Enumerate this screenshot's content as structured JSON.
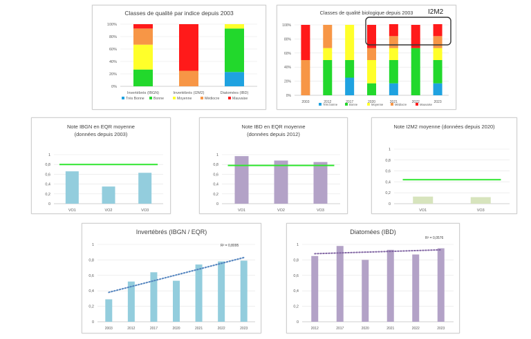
{
  "colors": {
    "tres_bonne": "#1fa2e0",
    "bonne": "#22d82c",
    "moyenne": "#ffff2a",
    "mediocre": "#f79646",
    "mauvaise": "#ff1a1a",
    "blue_bar": "#93cddd",
    "purple_bar": "#b3a2c7",
    "green_line": "#2ee62e",
    "olive_bar": "#d7e4bd",
    "trend_blue": "#4f81bd",
    "trend_purple": "#8064a2"
  },
  "chart_data": [
    {
      "id": "quality_by_index",
      "type": "bar",
      "stacked": true,
      "title": "Classes de qualité par indice depuis 2003",
      "categories": [
        "Invertébrés (IBGN)",
        "Invertébrés (I2M2)",
        "Diatomées (IBD)"
      ],
      "ylim": [
        0,
        100
      ],
      "yticks": [
        "0%",
        "20%",
        "40%",
        "60%",
        "80%",
        "100%"
      ],
      "series": [
        {
          "name": "Très Bonne",
          "values": [
            0,
            0,
            23
          ],
          "color_key": "tres_bonne"
        },
        {
          "name": "Bonne",
          "values": [
            27,
            0,
            70
          ],
          "color_key": "bonne"
        },
        {
          "name": "Moyenne",
          "values": [
            40,
            0,
            7
          ],
          "color_key": "moyenne"
        },
        {
          "name": "Médiocre",
          "values": [
            26,
            25,
            0
          ],
          "color_key": "mediocre"
        },
        {
          "name": "Mauvaise",
          "values": [
            7,
            75,
            0
          ],
          "color_key": "mauvaise"
        }
      ],
      "legend": [
        "Très Bonne",
        "Bonne",
        "Moyenne",
        "Médiocre",
        "Mauvaise"
      ]
    },
    {
      "id": "quality_bio_years",
      "type": "bar",
      "stacked": true,
      "title": "Classes de qualité biologique depuis 2003",
      "annotation": "I2M2",
      "categories": [
        "2003",
        "2012",
        "2017",
        "2020",
        "2021",
        "2022",
        "2023"
      ],
      "ylim": [
        0,
        100
      ],
      "yticks": [
        "0%",
        "20%",
        "40%",
        "60%",
        "80%",
        "100%"
      ],
      "series": [
        {
          "name": "Très bonne",
          "values": [
            0,
            0,
            25,
            0,
            17,
            0,
            17
          ],
          "color_key": "tres_bonne"
        },
        {
          "name": "Bonne",
          "values": [
            0,
            50,
            25,
            17,
            33,
            67,
            33
          ],
          "color_key": "bonne"
        },
        {
          "name": "Moyenne",
          "values": [
            0,
            17,
            50,
            33,
            17,
            0,
            17
          ],
          "color_key": "moyenne"
        },
        {
          "name": "Médiocre",
          "values": [
            50,
            33,
            0,
            17,
            17,
            0,
            17
          ],
          "color_key": "mediocre"
        },
        {
          "name": "Mauvaise",
          "values": [
            50,
            0,
            0,
            33,
            17,
            33,
            17
          ],
          "color_key": "mauvaise"
        }
      ],
      "legend": [
        "Très bonne",
        "Bonne",
        "Moyenne",
        "Médiocre",
        "Mauvaise"
      ]
    },
    {
      "id": "ibgn_eqr",
      "type": "bar",
      "title": "Note IBGN en EQR moyenne (données depuis 2003)",
      "categories": [
        "VO1",
        "VO2",
        "VO3"
      ],
      "values": [
        0.66,
        0.35,
        0.63
      ],
      "ylim": [
        0,
        1
      ],
      "yticks": [
        "0",
        "0,2",
        "0,4",
        "0,6",
        "0,8",
        "1"
      ],
      "threshold": 0.8,
      "color_key": "blue_bar"
    },
    {
      "id": "ibd_eqr",
      "type": "bar",
      "title": "Note IBD en EQR moyenne (données depuis 2012)",
      "categories": [
        "VO1",
        "VO2",
        "VO3"
      ],
      "values": [
        0.97,
        0.88,
        0.85
      ],
      "ylim": [
        0,
        1
      ],
      "yticks": [
        "0",
        "0,2",
        "0,4",
        "0,6",
        "0,8",
        "1"
      ],
      "threshold": 0.78,
      "color_key": "purple_bar"
    },
    {
      "id": "i2m2",
      "type": "bar",
      "title": "Note I2M2 moyenne (données depuis 2020)",
      "categories": [
        "VO1",
        "VO3"
      ],
      "values": [
        0.13,
        0.12
      ],
      "ylim": [
        0,
        1
      ],
      "yticks": [
        "0",
        "0,2",
        "0,4",
        "0,6",
        "0,8",
        "1"
      ],
      "threshold": 0.44,
      "color_key": "olive_bar"
    },
    {
      "id": "invertebres_trend",
      "type": "bar",
      "title": "Invertébrés (IBGN / EQR)",
      "categories": [
        "2003",
        "2012",
        "2017",
        "2020",
        "2021",
        "2022",
        "2023"
      ],
      "values": [
        0.29,
        0.52,
        0.64,
        0.53,
        0.74,
        0.78,
        0.79
      ],
      "ylim": [
        0,
        1
      ],
      "yticks": [
        "0",
        "0,2",
        "0,4",
        "0,6",
        "0,8",
        "1"
      ],
      "trend": {
        "start": 0.38,
        "end": 0.83,
        "r2": "R² = 0,8095"
      },
      "color_key": "blue_bar",
      "trend_color_key": "trend_blue"
    },
    {
      "id": "diatomees_trend",
      "type": "bar",
      "title": "Diatomées (IBD)",
      "categories": [
        "2012",
        "2017",
        "2020",
        "2021",
        "2022",
        "2023"
      ],
      "values": [
        0.85,
        0.98,
        0.8,
        0.93,
        0.87,
        0.95
      ],
      "ylim": [
        0,
        1
      ],
      "yticks": [
        "0",
        "0,2",
        "0,4",
        "0,6",
        "0,8",
        "1"
      ],
      "trend": {
        "start": 0.88,
        "end": 0.93,
        "r2": "R² = 0,0576"
      },
      "color_key": "purple_bar",
      "trend_color_key": "trend_purple"
    }
  ]
}
